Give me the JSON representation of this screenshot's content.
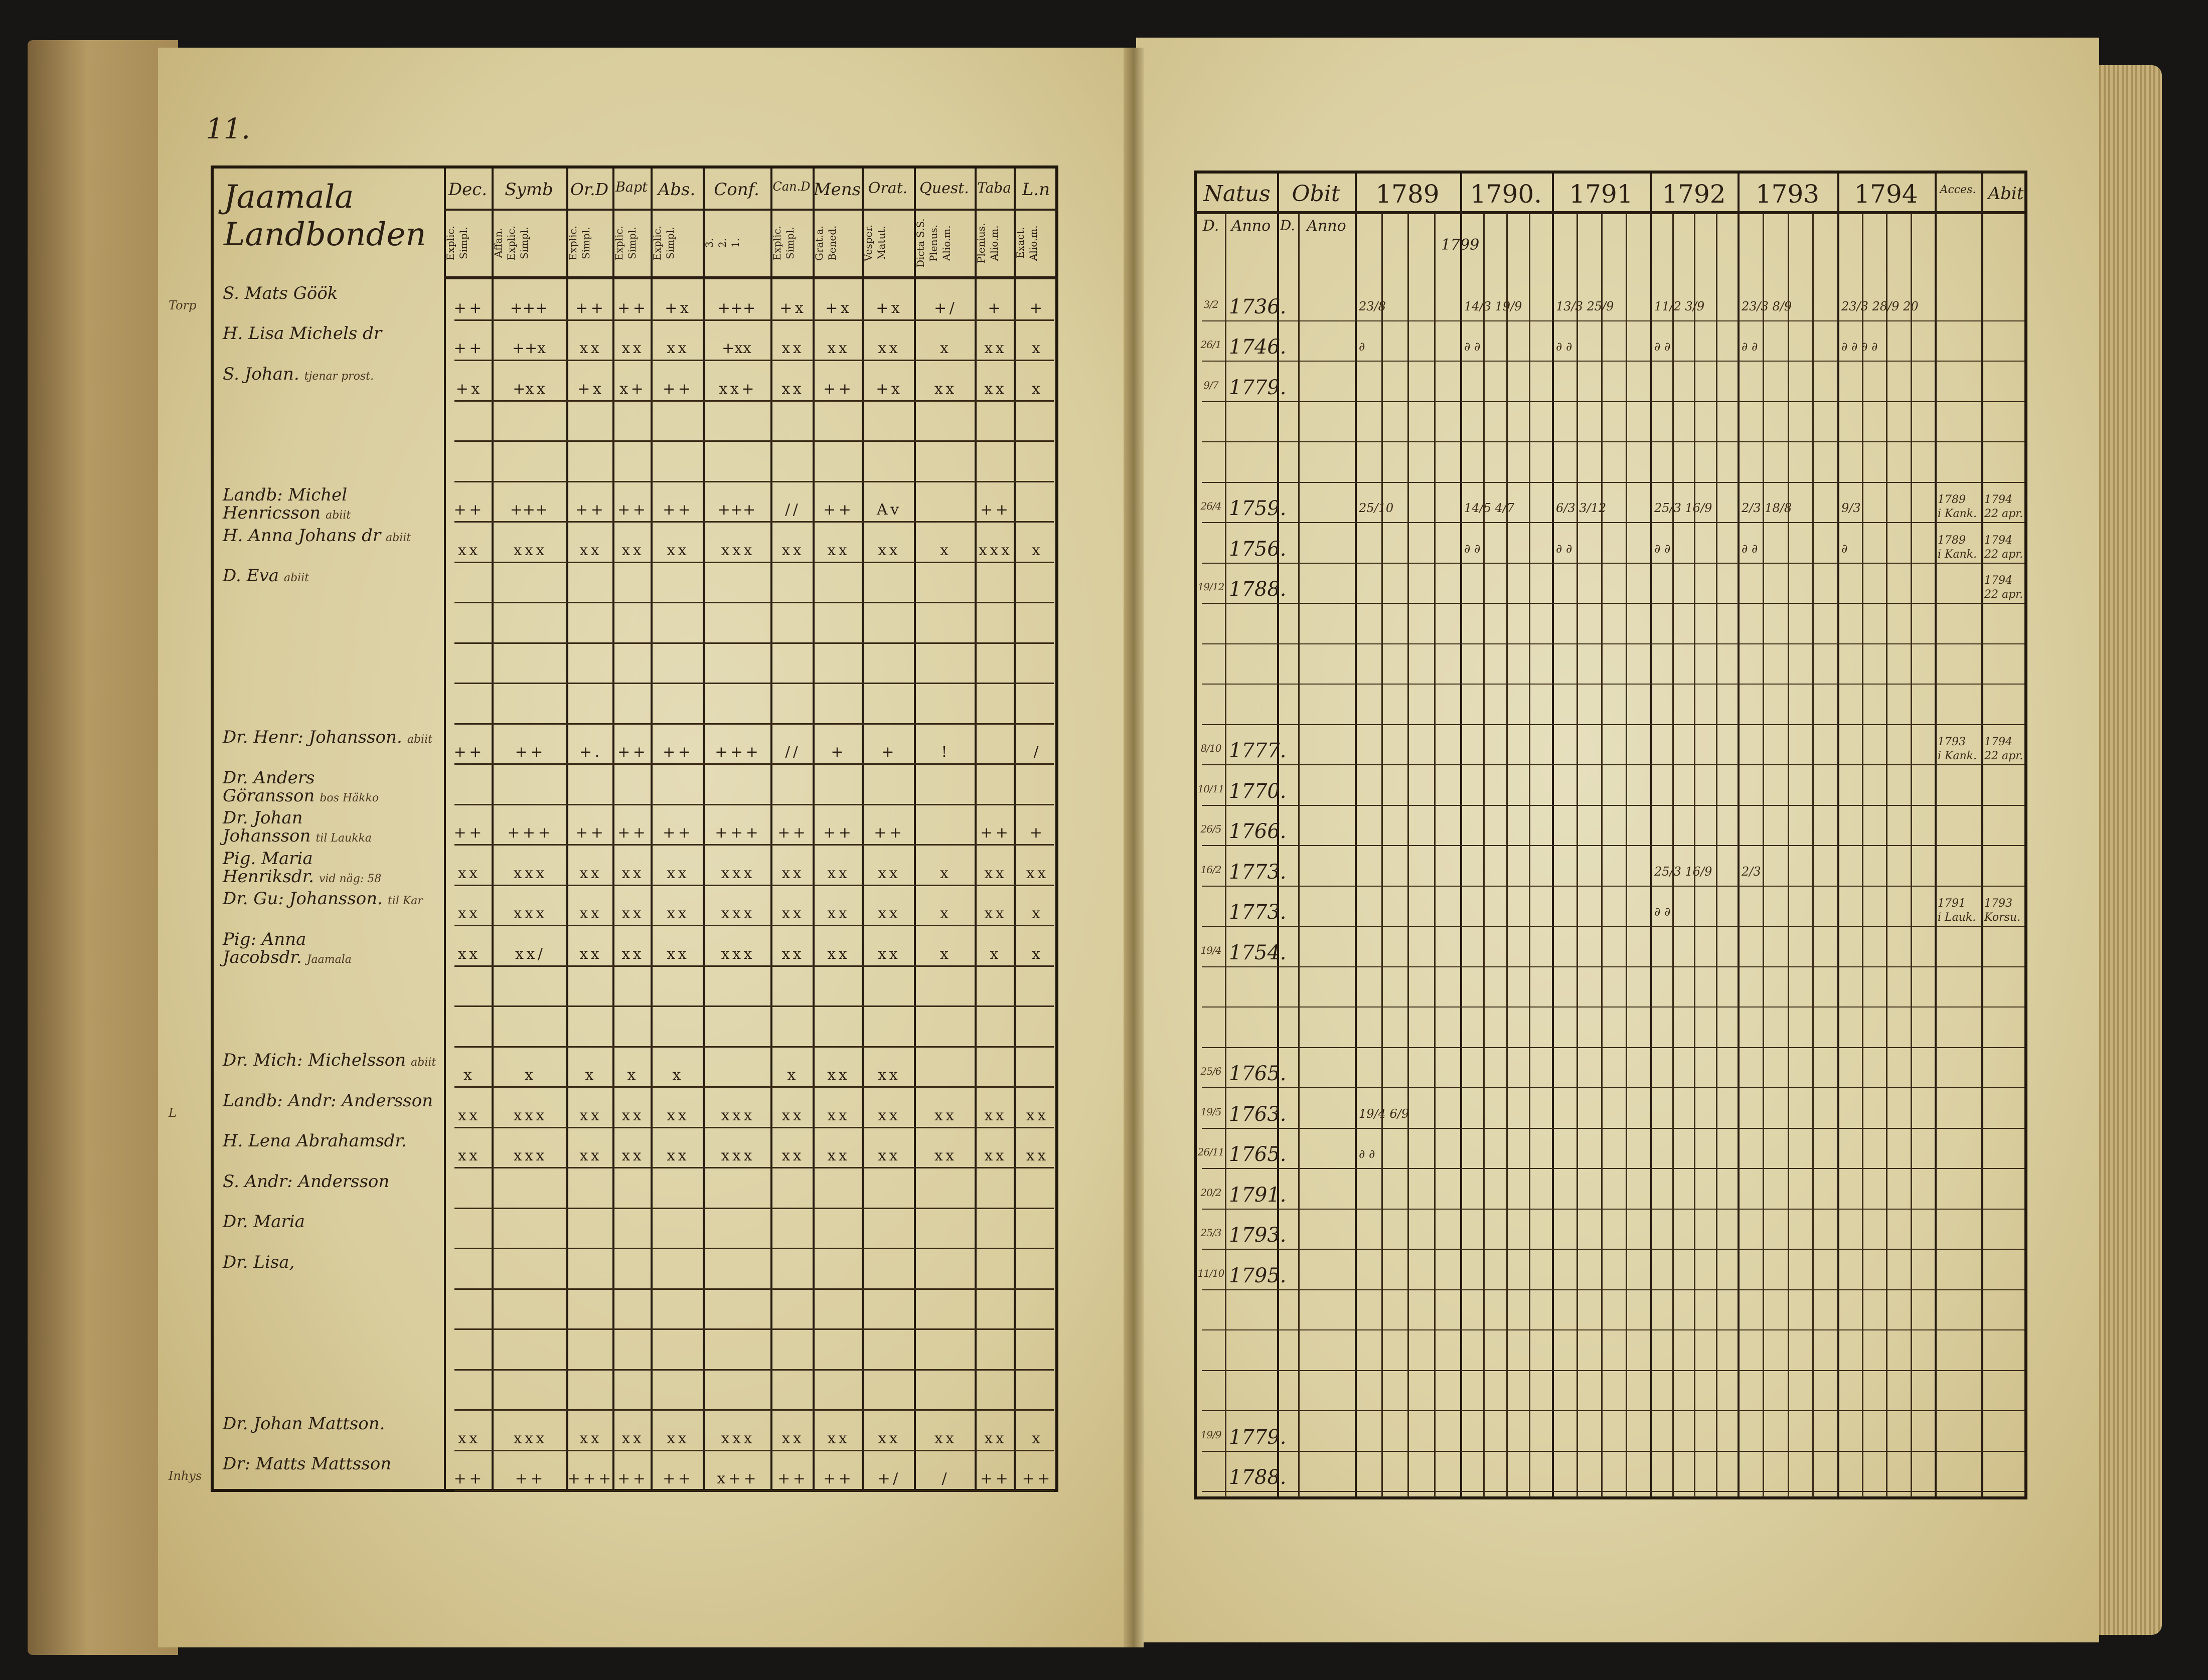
{
  "page_number": "11.",
  "left_table": {
    "title_line1": "Jaamala",
    "title_line2": "Landbonden",
    "columns": [
      {
        "head": "Dec.",
        "sub": "Explic.\nSimpl."
      },
      {
        "head": "Symb",
        "sub": "Affan.\nExplic.\nSimpl."
      },
      {
        "head": "Or.D",
        "sub": "Explic.\nSimpl."
      },
      {
        "head": "Bapt",
        "sub": "Explic.\nSimpl."
      },
      {
        "head": "Abs.",
        "sub": "Explic.\nSimpl."
      },
      {
        "head": "Conf.",
        "sub": "3.\n2.\n1."
      },
      {
        "head": "Can.D",
        "sub": "Explic.\nSimpl."
      },
      {
        "head": "Mens",
        "sub": "Grat.a.\nBened."
      },
      {
        "head": "Orat.",
        "sub": "Vesper.\nMatut."
      },
      {
        "head": "Quest.",
        "sub": "Dicta S.S.\nPlenus.\nAlio.m."
      },
      {
        "head": "Taba",
        "sub": "Plenius.\nAlio.m."
      },
      {
        "head": "L.n",
        "sub": "Exact.\nAlio.m."
      }
    ],
    "rows": [
      {
        "name": "S. Mats Göök",
        "margin": "Torp",
        "note": "",
        "marks": [
          "+ +",
          "+++",
          "+ +",
          "+ +",
          "+ x",
          "+++",
          "+ x",
          "+ x",
          "+ x",
          "+ /",
          "+",
          "+"
        ]
      },
      {
        "name": "H. Lisa Michels dr",
        "margin": "",
        "note": "",
        "marks": [
          "+ +",
          "++x",
          "x x",
          "x x",
          "x x",
          "+xx",
          "x x",
          "x x",
          "x x",
          "x",
          "x x",
          "x"
        ]
      },
      {
        "name": "S. Johan.",
        "margin": "",
        "note": "tjenar prost.",
        "marks": [
          "+ x",
          "+x x",
          "+ x",
          "x +",
          "+ +",
          "x x +",
          "x x",
          "+ +",
          "+ x",
          "x x",
          "x x",
          "x"
        ]
      },
      {
        "name": "",
        "margin": "",
        "note": "",
        "marks": []
      },
      {
        "name": "",
        "margin": "",
        "note": "",
        "marks": []
      },
      {
        "name": "Landb: Michel Henricsson",
        "margin": "",
        "note": "abiit",
        "marks": [
          "+ +",
          "+++",
          "+ +",
          "+ +",
          "+ +",
          "+++",
          "/ /",
          "+ +",
          "A v",
          "",
          "+ +",
          ""
        ]
      },
      {
        "name": "H. Anna Johans dr",
        "margin": "",
        "note": "abiit",
        "marks": [
          "x x",
          "x x x",
          "x x",
          "x x",
          "x x",
          "x x x",
          "x x",
          "x x",
          "x x",
          "x",
          "x x x",
          "x"
        ]
      },
      {
        "name": "D. Eva",
        "margin": "",
        "note": "abiit",
        "marks": []
      },
      {
        "name": "",
        "margin": "",
        "note": "",
        "marks": []
      },
      {
        "name": "",
        "margin": "",
        "note": "",
        "marks": []
      },
      {
        "name": "",
        "margin": "",
        "note": "",
        "marks": []
      },
      {
        "name": "Dr. Henr: Johansson.",
        "margin": "",
        "note": "abiit",
        "marks": [
          "+ +",
          "+ +",
          "+ .",
          "+ +",
          "+ +",
          "+ + +",
          "/ /",
          "+",
          "+",
          "!",
          "",
          "/"
        ]
      },
      {
        "name": "Dr. Anders Göransson",
        "margin": "",
        "note": "bos Häkko",
        "marks": []
      },
      {
        "name": "Dr. Johan Johansson",
        "margin": "",
        "note": "til Laukka",
        "marks": [
          "+ +",
          "+ + +",
          "+ +",
          "+ +",
          "+ +",
          "+ + +",
          "+ +",
          "+ +",
          "+ +",
          "",
          "+ +",
          "+"
        ]
      },
      {
        "name": "Pig. Maria Henriksdr.",
        "margin": "",
        "note": "vid näg: 58",
        "marks": [
          "x x",
          "x x x",
          "x x",
          "x x",
          "x x",
          "x x x",
          "x x",
          "x x",
          "x x",
          "x",
          "x x",
          "x x"
        ]
      },
      {
        "name": "Dr. Gu: Johansson.",
        "margin": "",
        "note": "til Kar",
        "marks": [
          "x x",
          "x x x",
          "x x",
          "x x",
          "x x",
          "x x x",
          "x x",
          "x x",
          "x x",
          "x",
          "x x",
          "x"
        ]
      },
      {
        "name": "Pig: Anna Jacobsdr.",
        "margin": "",
        "note": "Jaamala",
        "marks": [
          "x x",
          "x x /",
          "x x",
          "x x",
          "x x",
          "x x x",
          "x x",
          "x x",
          "x x",
          "x",
          "x",
          "x"
        ]
      },
      {
        "name": "",
        "margin": "",
        "note": "",
        "marks": []
      },
      {
        "name": "",
        "margin": "",
        "note": "",
        "marks": []
      },
      {
        "name": "Dr. Mich: Michelsson",
        "margin": "",
        "note": "abiit",
        "marks": [
          "x",
          "x",
          "x",
          "x",
          "x",
          "",
          "x",
          "x x",
          "x x",
          "",
          "",
          ""
        ]
      },
      {
        "name": "Landb: Andr: Andersson",
        "margin": "L",
        "note": "",
        "marks": [
          "x x",
          "x x x",
          "x x",
          "x x",
          "x x",
          "x x x",
          "x x",
          "x x",
          "x x",
          "x x",
          "x x",
          "x x"
        ]
      },
      {
        "name": "H. Lena Abrahamsdr.",
        "margin": "",
        "note": "",
        "marks": [
          "x x",
          "x x x",
          "x x",
          "x x",
          "x x",
          "x x x",
          "x x",
          "x x",
          "x x",
          "x x",
          "x x",
          "x x"
        ]
      },
      {
        "name": "S. Andr: Andersson",
        "margin": "",
        "note": "",
        "marks": []
      },
      {
        "name": "Dr. Maria",
        "margin": "",
        "note": "",
        "marks": []
      },
      {
        "name": "Dr. Lisa,",
        "margin": "",
        "note": "",
        "marks": []
      },
      {
        "name": "",
        "margin": "",
        "note": "",
        "marks": []
      },
      {
        "name": "",
        "margin": "",
        "note": "",
        "marks": []
      },
      {
        "name": "",
        "margin": "",
        "note": "",
        "marks": []
      },
      {
        "name": "Dr. Johan Mattson.",
        "margin": "",
        "note": "",
        "marks": [
          "x x",
          "x x x",
          "x x",
          "x x",
          "x x",
          "x x x",
          "x x",
          "x x",
          "x x",
          "x x",
          "x x",
          "x"
        ]
      },
      {
        "name": "Dr: Matts Mattsson",
        "margin": "Inhys",
        "note": "",
        "marks": [
          "+ +",
          "+ +",
          "+ + +",
          "+ +",
          "+ +",
          "x + +",
          "+ +",
          "+ +",
          "+ /",
          "/",
          "+ +",
          "+ +"
        ]
      }
    ]
  },
  "right_table": {
    "headers": {
      "natus": "Natus",
      "obit": "Obit",
      "d": "D.",
      "anno": "Anno",
      "acces": "Acces.",
      "abit": "Abit"
    },
    "years": [
      "1789",
      "1790.",
      "1791",
      "1792",
      "1793",
      "1794"
    ],
    "top_note": "1799",
    "rows": [
      {
        "d": "3/2",
        "anno": "1736.",
        "years": [
          "23/8",
          "14/3 19/9",
          "13/3 25/9",
          "11/2 3/9",
          "23/3 8/9",
          "23/3 28/9 20"
        ],
        "acces": "",
        "abit": ""
      },
      {
        "d": "26/1",
        "anno": "1746.",
        "years": [
          "∂",
          "∂ ∂",
          "∂ ∂",
          "∂ ∂",
          "∂ ∂",
          "∂ ∂ ∂ ∂"
        ],
        "acces": "",
        "abit": ""
      },
      {
        "d": "9/7",
        "anno": "1779.",
        "years": [],
        "acces": "",
        "abit": ""
      },
      {
        "d": "",
        "anno": "",
        "years": [],
        "acces": "",
        "abit": ""
      },
      {
        "d": "",
        "anno": "",
        "years": [],
        "acces": "",
        "abit": ""
      },
      {
        "d": "26/4",
        "anno": "1759.",
        "years": [
          "25/10",
          "14/5 4/7",
          "6/3 3/12",
          "25/3 16/9",
          "2/3 18/8",
          "9/3"
        ],
        "acces": "1789\ni Kank.",
        "abit": "1794\n22 apr."
      },
      {
        "d": "",
        "anno": "1756.",
        "years": [
          "",
          "∂ ∂",
          "∂ ∂",
          "∂ ∂",
          "∂ ∂",
          "∂"
        ],
        "acces": "1789\ni Kank.",
        "abit": "1794\n22 apr."
      },
      {
        "d": "19/12",
        "anno": "1788.",
        "years": [],
        "acces": "",
        "abit": "1794\n22 apr."
      },
      {
        "d": "",
        "anno": "",
        "years": [],
        "acces": "",
        "abit": ""
      },
      {
        "d": "",
        "anno": "",
        "years": [],
        "acces": "",
        "abit": ""
      },
      {
        "d": "",
        "anno": "",
        "years": [],
        "acces": "",
        "abit": ""
      },
      {
        "d": "8/10",
        "anno": "1777.",
        "years": [],
        "acces": "1793\ni Kank.",
        "abit": "1794\n22 apr."
      },
      {
        "d": "10/11",
        "anno": "1770.",
        "years": [],
        "acces": "",
        "abit": ""
      },
      {
        "d": "26/5",
        "anno": "1766.",
        "years": [],
        "acces": "",
        "abit": ""
      },
      {
        "d": "16/2",
        "anno": "1773.",
        "years": [
          "",
          "",
          "",
          "25/3 16/9",
          "2/3",
          ""
        ],
        "acces": "",
        "abit": ""
      },
      {
        "d": "",
        "anno": "1773.",
        "years": [
          "",
          "",
          "",
          "∂ ∂",
          "",
          ""
        ],
        "acces": "1791\ni Lauk.",
        "abit": "1793\nKorsu."
      },
      {
        "d": "19/4",
        "anno": "1754.",
        "years": [],
        "acces": "",
        "abit": ""
      },
      {
        "d": "",
        "anno": "",
        "years": [],
        "acces": "",
        "abit": ""
      },
      {
        "d": "",
        "anno": "",
        "years": [],
        "acces": "",
        "abit": ""
      },
      {
        "d": "25/6",
        "anno": "1765.",
        "years": [],
        "acces": "",
        "abit": ""
      },
      {
        "d": "19/5",
        "anno": "1763.",
        "years": [
          "19/4 6/9",
          "",
          "",
          "",
          "",
          ""
        ],
        "acces": "",
        "abit": ""
      },
      {
        "d": "26/11",
        "anno": "1765.",
        "years": [
          "∂ ∂",
          "",
          "",
          "",
          "",
          ""
        ],
        "acces": "",
        "abit": ""
      },
      {
        "d": "20/2",
        "anno": "1791.",
        "years": [],
        "acces": "",
        "abit": ""
      },
      {
        "d": "25/3",
        "anno": "1793.",
        "years": [],
        "acces": "",
        "abit": ""
      },
      {
        "d": "11/10",
        "anno": "1795.",
        "years": [],
        "acces": "",
        "abit": ""
      },
      {
        "d": "",
        "anno": "",
        "years": [],
        "acces": "",
        "abit": ""
      },
      {
        "d": "",
        "anno": "",
        "years": [],
        "acces": "",
        "abit": ""
      },
      {
        "d": "",
        "anno": "",
        "years": [],
        "acces": "",
        "abit": ""
      },
      {
        "d": "19/9",
        "anno": "1779.",
        "years": [],
        "acces": "",
        "abit": ""
      },
      {
        "d": "",
        "anno": "1788.",
        "years": [],
        "acces": "",
        "abit": ""
      }
    ]
  },
  "colors": {
    "paper": "#ddd3a8",
    "ink": "#2a1f12",
    "background": "#171614"
  }
}
